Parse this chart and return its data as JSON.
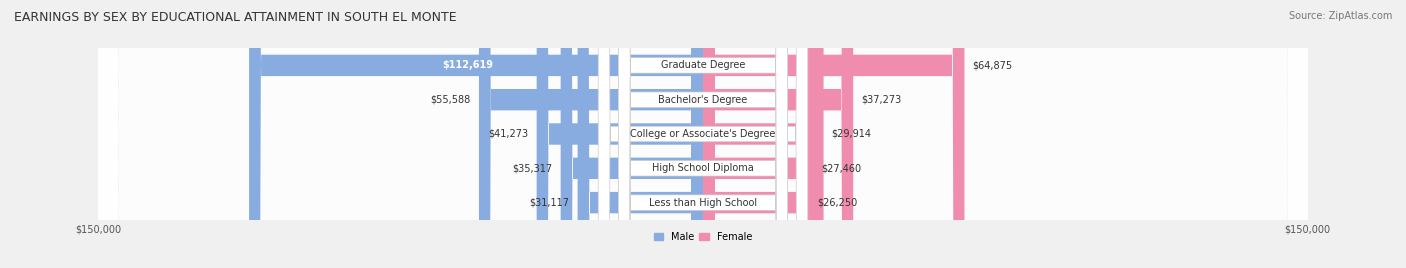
{
  "title": "EARNINGS BY SEX BY EDUCATIONAL ATTAINMENT IN SOUTH EL MONTE",
  "source": "Source: ZipAtlas.com",
  "categories": [
    "Less than High School",
    "High School Diploma",
    "College or Associate's Degree",
    "Bachelor's Degree",
    "Graduate Degree"
  ],
  "male_values": [
    31117,
    35317,
    41273,
    55588,
    112619
  ],
  "female_values": [
    26250,
    27460,
    29914,
    37273,
    64875
  ],
  "male_color": "#89ace0",
  "female_color": "#f08cad",
  "max_value": 150000,
  "bg_color": "#f0f0f0",
  "row_bg": "#e8e8e8",
  "label_bg": "#ffffff",
  "title_fontsize": 9,
  "source_fontsize": 7,
  "bar_label_fontsize": 7,
  "cat_label_fontsize": 7,
  "axis_label_fontsize": 7,
  "legend_fontsize": 7
}
